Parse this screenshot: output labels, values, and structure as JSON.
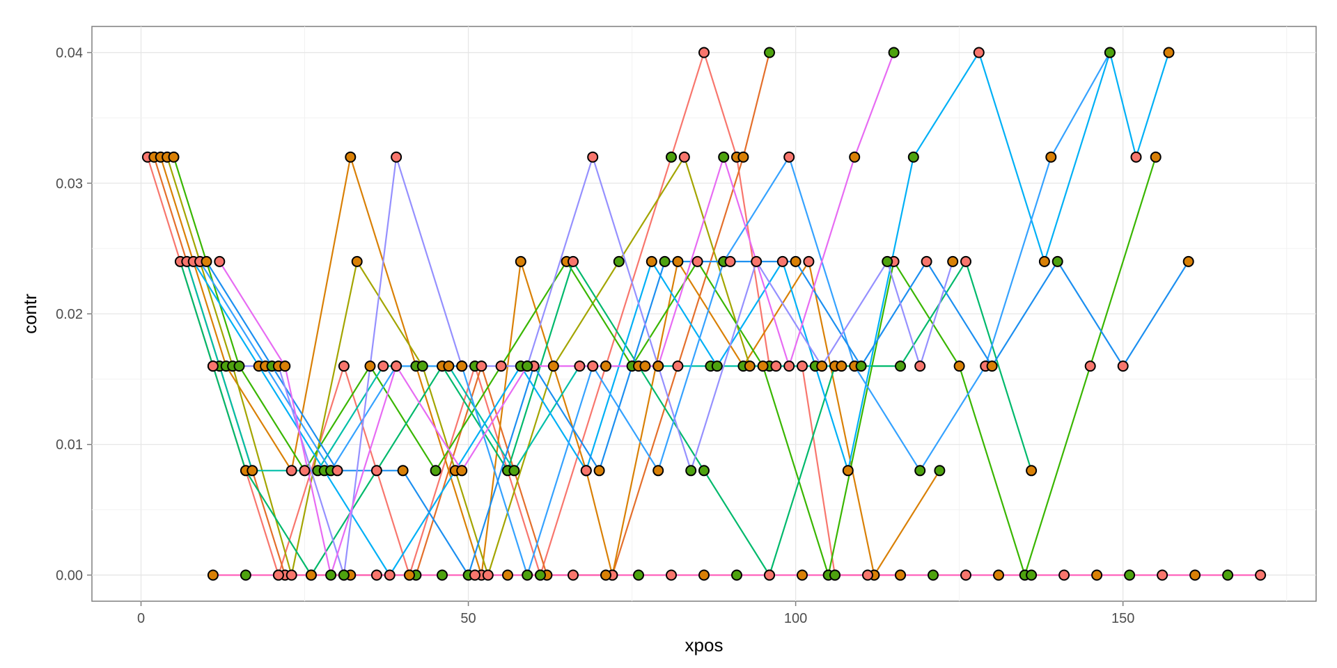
{
  "chart_data": {
    "type": "line",
    "title": "",
    "xlabel": "xpos",
    "ylabel": "contr",
    "xlim": [
      -7.5,
      179.5
    ],
    "ylim": [
      -0.002,
      0.042
    ],
    "x_ticks": [
      0,
      50,
      100,
      150
    ],
    "x_tick_labels": [
      "0",
      "50",
      "100",
      "150"
    ],
    "y_ticks": [
      0,
      0.01,
      0.02,
      0.03,
      0.04
    ],
    "y_tick_labels": [
      "0.00",
      "0.01",
      "0.02",
      "0.03",
      "0.04"
    ],
    "grid": true,
    "legend": "none",
    "point_fill_colors": [
      "#f8766d",
      "#d98006",
      "#4ea20f"
    ],
    "series": [
      {
        "color": "#f8766d",
        "values": [
          [
            1,
            0.032
          ],
          [
            11,
            0.016
          ],
          [
            21,
            0.0
          ],
          [
            31,
            0.016
          ],
          [
            41,
            0.0
          ],
          [
            51,
            0.016
          ],
          [
            61,
            0.0
          ],
          [
            71,
            0.016
          ],
          [
            81,
            0.032
          ],
          [
            86,
            0.04
          ],
          [
            91,
            0.032
          ],
          [
            96,
            0.016
          ],
          [
            101,
            0.016
          ],
          [
            106,
            0.0
          ],
          [
            116,
            0.0
          ]
        ]
      },
      {
        "color": "#e46f2b",
        "values": [
          [
            2,
            0.032
          ],
          [
            12,
            0.016
          ],
          [
            22,
            0.0
          ],
          [
            32,
            0.0
          ],
          [
            42,
            0.0
          ],
          [
            52,
            0.016
          ],
          [
            62,
            0.0
          ],
          [
            72,
            0.0
          ],
          [
            82,
            0.016
          ],
          [
            92,
            0.032
          ],
          [
            96,
            0.04
          ]
        ]
      },
      {
        "color": "#d98006",
        "values": [
          [
            3,
            0.032
          ],
          [
            13,
            0.016
          ],
          [
            23,
            0.008
          ],
          [
            32,
            0.032
          ],
          [
            42,
            0.016
          ],
          [
            52,
            0.0
          ],
          [
            58,
            0.024
          ],
          [
            68,
            0.008
          ],
          [
            72,
            0.0
          ],
          [
            82,
            0.024
          ],
          [
            92,
            0.016
          ],
          [
            102,
            0.024
          ],
          [
            112,
            0.0
          ],
          [
            122,
            0.008
          ]
        ]
      },
      {
        "color": "#a3a500",
        "values": [
          [
            4,
            0.032
          ],
          [
            14,
            0.016
          ],
          [
            23,
            0.0
          ],
          [
            33,
            0.024
          ],
          [
            43,
            0.016
          ],
          [
            53,
            0.0
          ],
          [
            63,
            0.016
          ],
          [
            73,
            0.024
          ],
          [
            83,
            0.032
          ],
          [
            93,
            0.016
          ],
          [
            103,
            0.016
          ]
        ]
      },
      {
        "color": "#39b600",
        "values": [
          [
            5,
            0.032
          ],
          [
            15,
            0.016
          ],
          [
            25,
            0.008
          ],
          [
            35,
            0.016
          ],
          [
            45,
            0.008
          ],
          [
            55,
            0.016
          ],
          [
            65,
            0.024
          ],
          [
            75,
            0.016
          ],
          [
            85,
            0.024
          ],
          [
            95,
            0.016
          ],
          [
            105,
            0.0
          ],
          [
            115,
            0.024
          ],
          [
            125,
            0.016
          ],
          [
            135,
            0.0
          ],
          [
            145,
            0.016
          ],
          [
            155,
            0.032
          ]
        ]
      },
      {
        "color": "#00b96c",
        "values": [
          [
            6,
            0.024
          ],
          [
            16,
            0.008
          ],
          [
            26,
            0.0
          ],
          [
            36,
            0.008
          ],
          [
            46,
            0.016
          ],
          [
            56,
            0.008
          ],
          [
            66,
            0.024
          ],
          [
            76,
            0.016
          ],
          [
            86,
            0.008
          ],
          [
            96,
            0.0
          ],
          [
            106,
            0.016
          ],
          [
            116,
            0.016
          ],
          [
            126,
            0.024
          ],
          [
            136,
            0.008
          ]
        ]
      },
      {
        "color": "#00bfa8",
        "values": [
          [
            7,
            0.024
          ],
          [
            17,
            0.008
          ],
          [
            27,
            0.008
          ],
          [
            37,
            0.016
          ],
          [
            47,
            0.016
          ],
          [
            57,
            0.008
          ],
          [
            67,
            0.016
          ],
          [
            77,
            0.016
          ],
          [
            87,
            0.016
          ],
          [
            97,
            0.016
          ],
          [
            107,
            0.016
          ]
        ]
      },
      {
        "color": "#00b0f6",
        "values": [
          [
            8,
            0.024
          ],
          [
            18,
            0.016
          ],
          [
            28,
            0.008
          ],
          [
            38,
            0.0
          ],
          [
            48,
            0.008
          ],
          [
            58,
            0.016
          ],
          [
            68,
            0.008
          ],
          [
            78,
            0.024
          ],
          [
            88,
            0.016
          ],
          [
            98,
            0.024
          ],
          [
            108,
            0.008
          ],
          [
            118,
            0.032
          ],
          [
            128,
            0.04
          ],
          [
            138,
            0.024
          ],
          [
            148,
            0.04
          ],
          [
            152,
            0.032
          ],
          [
            157,
            0.04
          ]
        ]
      },
      {
        "color": "#35a2ff",
        "values": [
          [
            9,
            0.024
          ],
          [
            19,
            0.016
          ],
          [
            29,
            0.008
          ],
          [
            39,
            0.016
          ],
          [
            49,
            0.016
          ],
          [
            59,
            0.0
          ],
          [
            69,
            0.016
          ],
          [
            79,
            0.008
          ],
          [
            89,
            0.024
          ],
          [
            99,
            0.032
          ],
          [
            109,
            0.016
          ],
          [
            119,
            0.008
          ],
          [
            129,
            0.016
          ],
          [
            139,
            0.032
          ],
          [
            148,
            0.04
          ]
        ]
      },
      {
        "color": "#1c8ff0",
        "values": [
          [
            10,
            0.024
          ],
          [
            20,
            0.016
          ],
          [
            30,
            0.008
          ],
          [
            40,
            0.008
          ],
          [
            50,
            0.0
          ],
          [
            60,
            0.016
          ],
          [
            70,
            0.008
          ],
          [
            80,
            0.024
          ],
          [
            90,
            0.024
          ],
          [
            100,
            0.024
          ],
          [
            110,
            0.016
          ],
          [
            120,
            0.024
          ],
          [
            130,
            0.016
          ],
          [
            140,
            0.024
          ],
          [
            150,
            0.016
          ],
          [
            160,
            0.024
          ]
        ]
      },
      {
        "color": "#9590ff",
        "values": [
          [
            11,
            0.016
          ],
          [
            21,
            0.016
          ],
          [
            31,
            0.0
          ],
          [
            39,
            0.032
          ],
          [
            49,
            0.016
          ],
          [
            59,
            0.016
          ],
          [
            69,
            0.032
          ],
          [
            79,
            0.016
          ],
          [
            84,
            0.008
          ],
          [
            94,
            0.024
          ],
          [
            104,
            0.016
          ],
          [
            114,
            0.024
          ],
          [
            119,
            0.016
          ],
          [
            124,
            0.024
          ]
        ]
      },
      {
        "color": "#e76bf3",
        "values": [
          [
            12,
            0.024
          ],
          [
            22,
            0.016
          ],
          [
            29,
            0.0
          ],
          [
            39,
            0.016
          ],
          [
            49,
            0.008
          ],
          [
            59,
            0.016
          ],
          [
            69,
            0.016
          ],
          [
            79,
            0.016
          ],
          [
            89,
            0.032
          ],
          [
            99,
            0.016
          ],
          [
            109,
            0.032
          ],
          [
            115,
            0.04
          ]
        ]
      },
      {
        "color": "#ff62bc",
        "values": [
          [
            11,
            0.0
          ],
          [
            16,
            0.0
          ],
          [
            21,
            0.0
          ],
          [
            26,
            0.0
          ],
          [
            31,
            0.0
          ],
          [
            36,
            0.0
          ],
          [
            41,
            0.0
          ],
          [
            46,
            0.0
          ],
          [
            51,
            0.0
          ],
          [
            56,
            0.0
          ],
          [
            61,
            0.0
          ],
          [
            66,
            0.0
          ],
          [
            71,
            0.0
          ],
          [
            76,
            0.0
          ],
          [
            81,
            0.0
          ],
          [
            86,
            0.0
          ],
          [
            91,
            0.0
          ],
          [
            96,
            0.0
          ],
          [
            101,
            0.0
          ],
          [
            106,
            0.0
          ],
          [
            111,
            0.0
          ],
          [
            116,
            0.0
          ],
          [
            121,
            0.0
          ],
          [
            126,
            0.0
          ],
          [
            131,
            0.0
          ],
          [
            136,
            0.0
          ],
          [
            141,
            0.0
          ],
          [
            146,
            0.0
          ],
          [
            151,
            0.0
          ],
          [
            156,
            0.0
          ],
          [
            161,
            0.0
          ],
          [
            166,
            0.0
          ],
          [
            171,
            0.0
          ]
        ]
      }
    ]
  }
}
